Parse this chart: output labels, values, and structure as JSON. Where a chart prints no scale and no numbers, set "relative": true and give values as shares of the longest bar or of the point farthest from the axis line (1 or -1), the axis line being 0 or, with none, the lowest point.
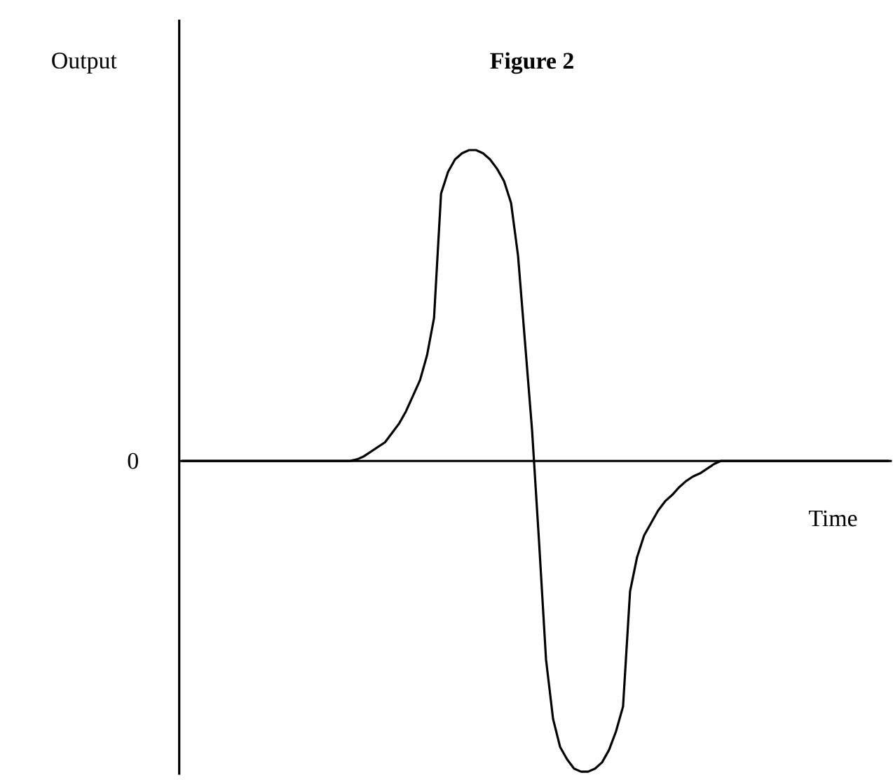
{
  "chart_data": {
    "type": "line",
    "title": "Figure 2",
    "xlabel": "Time",
    "ylabel": "Output",
    "relative": true,
    "annotations": [
      "0"
    ],
    "categories": [
      null,
      null,
      null,
      null,
      null,
      null,
      null,
      null,
      null,
      null,
      null,
      null,
      null,
      null,
      null,
      null,
      null,
      null,
      null,
      null,
      null,
      null,
      null,
      null,
      null,
      null,
      null,
      null,
      null,
      null,
      null,
      null,
      null,
      null,
      null,
      null,
      null,
      null,
      null,
      null,
      null,
      null,
      null,
      null,
      null,
      null,
      null,
      null,
      null,
      null,
      null,
      null,
      null,
      null,
      null,
      null,
      null,
      null,
      null,
      null,
      null,
      null,
      null,
      null,
      null,
      null,
      null,
      null,
      null,
      null,
      null,
      null,
      null,
      null,
      null,
      null,
      null,
      null,
      null,
      null,
      null,
      null,
      null,
      null,
      null,
      null,
      null,
      null,
      null,
      null,
      null,
      null,
      null,
      null,
      null,
      null,
      null,
      null,
      null,
      null,
      null,
      null
    ],
    "series": [
      {
        "color": "#000000",
        "values": [
          0,
          0,
          0,
          0,
          0,
          0,
          0,
          0,
          0,
          0,
          0,
          0,
          0,
          0,
          0,
          0,
          0,
          0,
          0,
          0,
          0,
          0,
          0,
          0,
          0,
          0.005,
          0.015,
          0.03,
          0.045,
          0.06,
          0.09,
          0.12,
          0.16,
          0.21,
          0.26,
          0.34,
          0.46,
          0.86,
          0.93,
          0.97,
          0.99,
          1.0,
          1.0,
          0.99,
          0.97,
          0.94,
          0.9,
          0.83,
          0.66,
          0.38,
          0.1,
          -0.26,
          -0.64,
          -0.83,
          -0.92,
          -0.96,
          -0.99,
          -1.0,
          -1.0,
          -0.99,
          -0.97,
          -0.93,
          -0.87,
          -0.79,
          -0.42,
          -0.31,
          -0.24,
          -0.2,
          -0.16,
          -0.13,
          -0.11,
          -0.085,
          -0.065,
          -0.05,
          -0.04,
          -0.025,
          -0.01,
          0,
          0,
          0,
          0,
          0,
          0,
          0,
          0,
          0,
          0,
          0,
          0,
          0,
          0,
          0,
          0,
          0,
          0,
          0,
          0,
          0,
          0,
          0,
          0,
          0
        ]
      }
    ]
  }
}
